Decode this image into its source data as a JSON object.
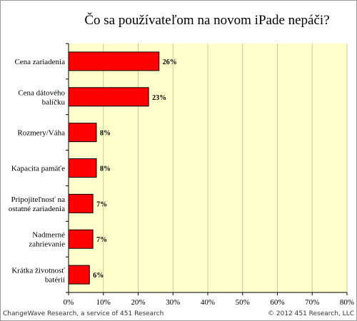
{
  "chart_data": {
    "type": "bar",
    "orientation": "horizontal",
    "title": "Čo sa používateľom na novom iPade nepáči?",
    "categories": [
      [
        "Cena zariadenia"
      ],
      [
        "Cena dátového",
        "balíčku"
      ],
      [
        "Rozmery/Váha"
      ],
      [
        "Kapacita pamäťe"
      ],
      [
        "Pripojiteľnosť na",
        "ostatné zariadenia"
      ],
      [
        "Nadmerné",
        "zahrievanie"
      ],
      [
        "Krátka životnosť",
        "batérií"
      ]
    ],
    "values": [
      26,
      23,
      8,
      8,
      7,
      7,
      6
    ],
    "value_labels": [
      "26%",
      "23%",
      "8%",
      "8%",
      "7%",
      "7%",
      "6%"
    ],
    "xlim": [
      0,
      80
    ],
    "xticks": [
      0,
      10,
      20,
      30,
      40,
      50,
      60,
      70,
      80
    ],
    "xtick_labels": [
      "0%",
      "10%",
      "20%",
      "30%",
      "40%",
      "50%",
      "60%",
      "70%",
      "80%"
    ],
    "grid": "vertical",
    "legend": "none",
    "colors": {
      "bar": "#ff0000",
      "plot_background": "#ffffcc",
      "grid": "#c8c8a0"
    }
  },
  "footer": {
    "left": "ChangeWave Research, a service of 451 Research",
    "right": "© 2012 451 Research, LLC"
  }
}
